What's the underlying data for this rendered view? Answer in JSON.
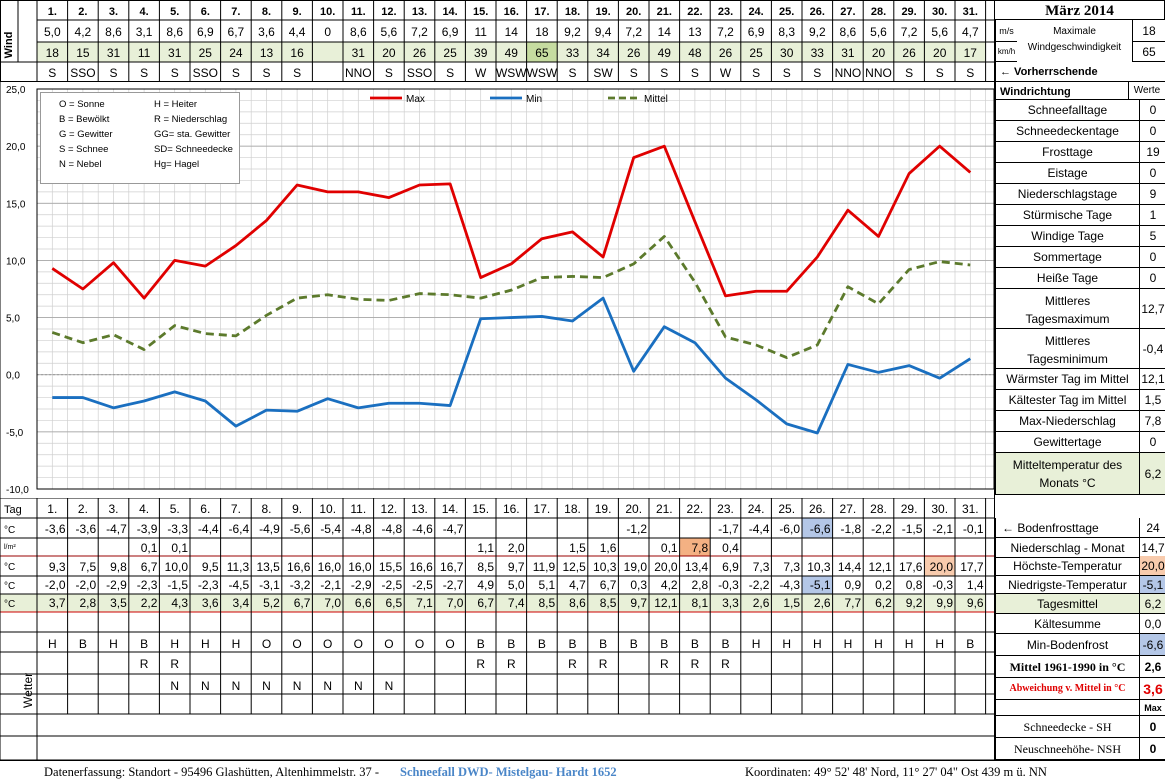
{
  "header": {
    "title": "März 2014",
    "wind_label": "Wind",
    "unit_ms": "m/s",
    "unit_kmh": "km/h",
    "max_wind_label": "Maximale Windgeschwindigkeit",
    "max_ms": "18",
    "max_kmh": "65",
    "dir_label": "← Vorherrschende Windrichtung",
    "werte": "Werte"
  },
  "days": [
    "1.",
    "2.",
    "3.",
    "4.",
    "5.",
    "6.",
    "7.",
    "8.",
    "9.",
    "10.",
    "11.",
    "12.",
    "13.",
    "14.",
    "15.",
    "16.",
    "17.",
    "18.",
    "19.",
    "20.",
    "21.",
    "22.",
    "23.",
    "24.",
    "25.",
    "26.",
    "27.",
    "28.",
    "29.",
    "30.",
    "31."
  ],
  "wind_ms": [
    "5,0",
    "4,2",
    "8,6",
    "3,1",
    "8,6",
    "6,9",
    "6,7",
    "3,6",
    "4,4",
    "0",
    "8,6",
    "5,6",
    "7,2",
    "6,9",
    "11",
    "14",
    "18",
    "9,2",
    "9,4",
    "7,2",
    "14",
    "13",
    "7,2",
    "6,9",
    "8,3",
    "9,2",
    "8,6",
    "5,6",
    "7,2",
    "5,6",
    "4,7"
  ],
  "wind_kmh": [
    "18",
    "15",
    "31",
    "11",
    "31",
    "25",
    "24",
    "13",
    "16",
    "",
    "31",
    "20",
    "26",
    "25",
    "39",
    "49",
    "65",
    "33",
    "34",
    "26",
    "49",
    "48",
    "26",
    "25",
    "30",
    "33",
    "31",
    "20",
    "26",
    "20",
    "17"
  ],
  "wind_dir": [
    "S",
    "SSO",
    "S",
    "S",
    "S",
    "SSO",
    "S",
    "S",
    "S",
    "",
    "NNO",
    "S",
    "SSO",
    "S",
    "W",
    "WSW",
    "WSW",
    "S",
    "SW",
    "S",
    "S",
    "S",
    "W",
    "S",
    "S",
    "S",
    "NNO",
    "NNO",
    "S",
    "S",
    "S"
  ],
  "legend_box": [
    "O = Sonne",
    "H = Heiter",
    "B = Bewölkt",
    "R = Niederschlag",
    "G = Gewitter",
    "GG= sta. Gewitter",
    "S = Schnee",
    "SD= Schneedecke",
    "N = Nebel",
    "Hg= Hagel"
  ],
  "chart_data": {
    "type": "line",
    "x": [
      1,
      2,
      3,
      4,
      5,
      6,
      7,
      8,
      9,
      10,
      11,
      12,
      13,
      14,
      15,
      16,
      17,
      18,
      19,
      20,
      21,
      22,
      23,
      24,
      25,
      26,
      27,
      28,
      29,
      30,
      31
    ],
    "ylim": [
      -10,
      25
    ],
    "yticks": [
      "25,0",
      "20,0",
      "15,0",
      "10,0",
      "5,0",
      "0,0",
      "-5,0",
      "-10,0"
    ],
    "grid": true,
    "legend_position": "top",
    "series": [
      {
        "name": "Max",
        "color": "#e00000",
        "style": "solid",
        "values": [
          9.3,
          7.5,
          9.8,
          6.7,
          10.0,
          9.5,
          11.3,
          13.5,
          16.6,
          16.0,
          16.0,
          15.5,
          16.6,
          16.7,
          8.5,
          9.7,
          11.9,
          12.5,
          10.3,
          19.0,
          20.0,
          13.4,
          6.9,
          7.3,
          7.3,
          10.3,
          14.4,
          12.1,
          17.6,
          20.0,
          17.7
        ]
      },
      {
        "name": "Min",
        "color": "#1a6fc0",
        "style": "solid",
        "values": [
          -2.0,
          -2.0,
          -2.9,
          -2.3,
          -1.5,
          -2.3,
          -4.5,
          -3.1,
          -3.2,
          -2.1,
          -2.9,
          -2.5,
          -2.5,
          -2.7,
          4.9,
          5.0,
          5.1,
          4.7,
          6.7,
          0.3,
          4.2,
          2.8,
          -0.3,
          -2.2,
          -4.3,
          -5.1,
          0.9,
          0.2,
          0.8,
          -0.3,
          1.4
        ]
      },
      {
        "name": "Mittel",
        "color": "#5c7a2c",
        "style": "dashed",
        "values": [
          3.7,
          2.8,
          3.5,
          2.2,
          4.3,
          3.6,
          3.4,
          5.2,
          6.7,
          7.0,
          6.6,
          6.5,
          7.1,
          7.0,
          6.7,
          7.4,
          8.5,
          8.6,
          8.5,
          9.7,
          12.1,
          8.1,
          3.3,
          2.6,
          1.5,
          2.6,
          7.7,
          6.2,
          9.2,
          9.9,
          9.6
        ]
      }
    ]
  },
  "lower": {
    "tag_label": "Tag",
    "unit_c": "°C",
    "unit_lm": "l/m²",
    "wetter_label": "Wetter",
    "bodenfrost": [
      "-3,6",
      "-3,6",
      "-4,7",
      "-3,9",
      "-3,3",
      "-4,4",
      "-6,4",
      "-4,9",
      "-5,6",
      "-5,4",
      "-4,8",
      "-4,8",
      "-4,6",
      "-4,7",
      "",
      "",
      "",
      "",
      "",
      "-1,2",
      "",
      "",
      "-1,7",
      "-4,4",
      "-6,0",
      "-6,6",
      "-1,8",
      "-2,2",
      "-1,5",
      "-2,1",
      "-0,1"
    ],
    "niederschlag": [
      "",
      "",
      "",
      "0,1",
      "0,1",
      "",
      "",
      "",
      "",
      "",
      "",
      "",
      "",
      "",
      "1,1",
      "2,0",
      "",
      "1,5",
      "1,6",
      "",
      "0,1",
      "7,8",
      "0,4",
      "",
      "",
      "",
      "",
      "",
      "",
      "",
      ""
    ],
    "hoechst": [
      "9,3",
      "7,5",
      "9,8",
      "6,7",
      "10,0",
      "9,5",
      "11,3",
      "13,5",
      "16,6",
      "16,0",
      "16,0",
      "15,5",
      "16,6",
      "16,7",
      "8,5",
      "9,7",
      "11,9",
      "12,5",
      "10,3",
      "19,0",
      "20,0",
      "13,4",
      "6,9",
      "7,3",
      "7,3",
      "10,3",
      "14,4",
      "12,1",
      "17,6",
      "20,0",
      "17,7"
    ],
    "niedrigst": [
      "-2,0",
      "-2,0",
      "-2,9",
      "-2,3",
      "-1,5",
      "-2,3",
      "-4,5",
      "-3,1",
      "-3,2",
      "-2,1",
      "-2,9",
      "-2,5",
      "-2,5",
      "-2,7",
      "4,9",
      "5,0",
      "5,1",
      "4,7",
      "6,7",
      "0,3",
      "4,2",
      "2,8",
      "-0,3",
      "-2,2",
      "-4,3",
      "-5,1",
      "0,9",
      "0,2",
      "0,8",
      "-0,3",
      "1,4"
    ],
    "mittel": [
      "3,7",
      "2,8",
      "3,5",
      "2,2",
      "4,3",
      "3,6",
      "3,4",
      "5,2",
      "6,7",
      "7,0",
      "6,6",
      "6,5",
      "7,1",
      "7,0",
      "6,7",
      "7,4",
      "8,5",
      "8,6",
      "8,5",
      "9,7",
      "12,1",
      "8,1",
      "3,3",
      "2,6",
      "1,5",
      "2,6",
      "7,7",
      "6,2",
      "9,2",
      "9,9",
      "9,6"
    ],
    "wetter1": [
      "H",
      "B",
      "H",
      "B",
      "H",
      "H",
      "H",
      "O",
      "O",
      "O",
      "O",
      "O",
      "O",
      "O",
      "B",
      "B",
      "B",
      "B",
      "B",
      "B",
      "B",
      "B",
      "B",
      "H",
      "H",
      "H",
      "H",
      "H",
      "H",
      "H",
      "B"
    ],
    "wetter2": [
      "",
      "",
      "",
      "R",
      "R",
      "",
      "",
      "",
      "",
      "",
      "",
      "",
      "",
      "",
      "R",
      "R",
      "",
      "R",
      "R",
      "",
      "R",
      "R",
      "R",
      "",
      "",
      "",
      "",
      "",
      "",
      "",
      ""
    ],
    "wetter3": [
      "",
      "",
      "",
      "",
      "N",
      "N",
      "N",
      "N",
      "N",
      "N",
      "N",
      "N",
      "",
      "",
      "",
      "",
      "",
      "",
      "",
      "",
      "",
      "",
      "",
      "",
      "",
      "",
      "",
      "",
      "",
      "",
      ""
    ]
  },
  "stats": [
    {
      "label": "Schneefalltage",
      "value": "0"
    },
    {
      "label": "Schneedeckentage",
      "value": "0"
    },
    {
      "label": "Frosttage",
      "value": "19"
    },
    {
      "label": "Eistage",
      "value": "0"
    },
    {
      "label": "Niederschlagstage",
      "value": "9"
    },
    {
      "label": "Stürmische Tage",
      "value": "1"
    },
    {
      "label": "Windige Tage",
      "value": "5"
    },
    {
      "label": "Sommertage",
      "value": "0"
    },
    {
      "label": "Heiße Tage",
      "value": "0"
    },
    {
      "label": "Mittleres Tagesmaximum",
      "value": "12,7"
    },
    {
      "label": "Mittleres Tagesminimum",
      "value": "-0,4"
    },
    {
      "label": "Wärmster Tag im Mittel",
      "value": "12,1"
    },
    {
      "label": "Kältester Tag im Mittel",
      "value": "1,5"
    },
    {
      "label": "Max-Niederschlag",
      "value": "7,8"
    },
    {
      "label": "Gewittertage",
      "value": "0"
    },
    {
      "label": "Mitteltemperatur des Monats °C",
      "value": "6,2"
    }
  ],
  "lower_stats": [
    {
      "label": "← Bodenfrosttage",
      "value": "24"
    },
    {
      "label": "Niederschlag - Monat",
      "value": "14,7"
    },
    {
      "label": "Höchste-Temperatur",
      "value": "20,0"
    },
    {
      "label": "Niedrigste-Temperatur",
      "value": "-5,1"
    },
    {
      "label": "Tagesmittel",
      "value": "6,2"
    },
    {
      "label": "Kältesumme",
      "value": "0,0"
    },
    {
      "label": "Min-Bodenfrost",
      "value": "-6,6"
    },
    {
      "label": "Mittel 1961-1990 in °C",
      "value": "2,6"
    },
    {
      "label": "Abweichung v. Mittel in °C",
      "value": "3,6"
    },
    {
      "label": "",
      "value": "Max"
    },
    {
      "label": "Schneedecke - SH",
      "value": "0"
    },
    {
      "label": "Neuschneehöhe- NSH",
      "value": "0"
    }
  ],
  "footer": {
    "left": "Datenerfassung:  Standort -  95496  Glashütten, Altenhimmelstr. 37 -",
    "blue": "Schneefall DWD- Mistelgau- Hardt 1652",
    "right": "Koordinaten:  49° 52' 48' Nord,   11° 27' 04\" Ost   439 m ü. NN"
  },
  "colors": {
    "max": "#e00000",
    "min": "#1a6fc0",
    "mittel": "#5c7a2c",
    "green_row": "#e8f0d8",
    "orange": "#f4b183",
    "blue_cell": "#b4c7e7"
  }
}
